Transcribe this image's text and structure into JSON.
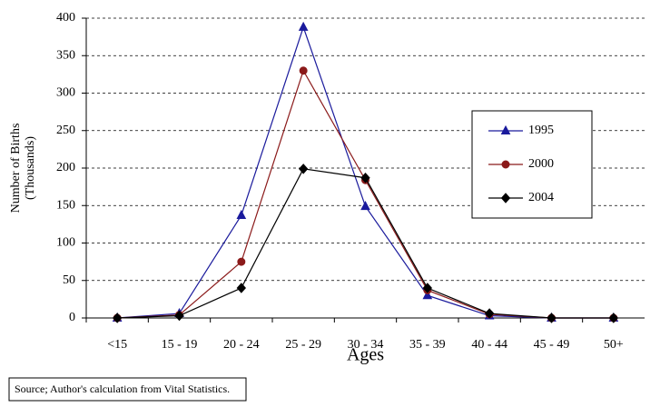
{
  "chart_data": {
    "type": "line",
    "ylabel": [
      "Number of Births",
      "(Thousands)"
    ],
    "xlabel": "Ages",
    "source": "Source; Author's calculation from Vital Statistics.",
    "categories": [
      "<15",
      "15 - 19",
      "20 - 24",
      "25 - 29",
      "30 - 34",
      "35 - 39",
      "40 - 44",
      "45 - 49",
      "50+"
    ],
    "series": [
      {
        "name": "1995",
        "color": "#1a1a9c",
        "marker": "triangle",
        "values": [
          0,
          6,
          137,
          388,
          149,
          30,
          3,
          0,
          0
        ]
      },
      {
        "name": "2000",
        "color": "#8b1a1a",
        "marker": "circle",
        "values": [
          0,
          4,
          75,
          330,
          184,
          37,
          5,
          0,
          0
        ]
      },
      {
        "name": "2004",
        "color": "#000000",
        "marker": "diamond",
        "values": [
          0,
          3,
          40,
          199,
          187,
          40,
          6,
          0,
          0
        ]
      }
    ],
    "ylim": [
      0,
      400
    ],
    "yticks": [
      0,
      50,
      100,
      150,
      200,
      250,
      300,
      350,
      400
    ],
    "grid": true
  }
}
